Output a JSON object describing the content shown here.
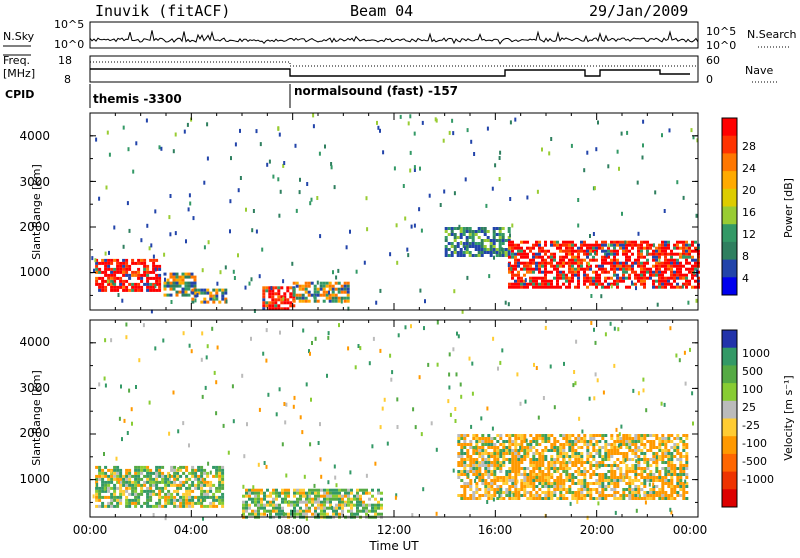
{
  "header": {
    "station": "Inuvik (fitACF)",
    "beam": "Beam 04",
    "date": "29/Jan/2009"
  },
  "panels": {
    "nsky": {
      "label": "N.Sky",
      "left_ticks": [
        "10^5",
        "10^0"
      ],
      "right_ticks": [
        "10^5",
        "10^0"
      ],
      "right_label": "N.Search"
    },
    "freq": {
      "label": "Freq.",
      "unit": "[MHz]",
      "left_ticks": [
        "18",
        "8"
      ],
      "right_ticks": [
        "60",
        "0"
      ],
      "right_label": "Nave"
    },
    "cpid": {
      "label": "CPID",
      "segments": [
        {
          "text": "themis -3300",
          "start_hour": 0,
          "end_hour": 8
        },
        {
          "text": "normalsound (fast) -157",
          "start_hour": 8,
          "end_hour": 24
        }
      ]
    }
  },
  "colorbars": {
    "power": {
      "title": "Power [dB]",
      "ticks": [
        "28",
        "24",
        "20",
        "16",
        "12",
        "8",
        "4"
      ],
      "colors": [
        "#ff0000",
        "#ff3300",
        "#ff7700",
        "#ffaa00",
        "#ddcc00",
        "#99cc33",
        "#339966",
        "#2f7f5f",
        "#2244aa",
        "#0000ee"
      ]
    },
    "velocity": {
      "title": "Velocity [m s⁻¹]",
      "ticks": [
        "1000",
        "500",
        "100",
        "25",
        "-25",
        "-100",
        "-500",
        "-1000"
      ],
      "colors": [
        "#2233aa",
        "#339966",
        "#55aa44",
        "#88cc33",
        "#bbbbbb",
        "#ffcc33",
        "#ff9900",
        "#ff6600",
        "#ee3300",
        "#dd0000"
      ]
    }
  },
  "axes": {
    "ylabel": "Slant Range [km]",
    "xlabel": "Time UT",
    "y_ticks": [
      "4000",
      "3000",
      "2000",
      "1000"
    ],
    "x_ticks": [
      "00:00",
      "04:00",
      "08:00",
      "12:00",
      "16:00",
      "20:00",
      "00:00"
    ]
  },
  "chart_data": [
    {
      "type": "heatmap",
      "title": "",
      "xlabel": "",
      "ylabel": "Slant Range [km]",
      "xlim_hours": [
        0,
        24
      ],
      "ylim": [
        180,
        4500
      ],
      "quantity": "Power [dB]",
      "regions": [
        {
          "t": [
            0.2,
            2.7
          ],
          "range": [
            600,
            1300
          ],
          "level": "strong"
        },
        {
          "t": [
            2.9,
            4.1
          ],
          "range": [
            500,
            1000
          ],
          "level": "medium"
        },
        {
          "t": [
            4.0,
            5.4
          ],
          "range": [
            350,
            650
          ],
          "level": "medium"
        },
        {
          "t": [
            6.8,
            8.0
          ],
          "range": [
            200,
            700
          ],
          "level": "strong"
        },
        {
          "t": [
            8.0,
            10.2
          ],
          "range": [
            400,
            800
          ],
          "level": "medium"
        },
        {
          "t": [
            14.0,
            16.5
          ],
          "range": [
            1400,
            2000
          ],
          "level": "weak"
        },
        {
          "t": [
            16.5,
            24
          ],
          "range": [
            700,
            1700
          ],
          "level": "strong"
        }
      ]
    },
    {
      "type": "heatmap",
      "title": "",
      "xlabel": "Time UT",
      "ylabel": "Slant Range [km]",
      "xlim_hours": [
        0,
        24
      ],
      "ylim": [
        180,
        4500
      ],
      "quantity": "Velocity [m s⁻¹]",
      "regions": [
        {
          "t": [
            0.2,
            5.2
          ],
          "range": [
            400,
            1300
          ],
          "level": "mixed"
        },
        {
          "t": [
            6.0,
            11.5
          ],
          "range": [
            200,
            800
          ],
          "level": "mixed"
        },
        {
          "t": [
            14.5,
            23.6
          ],
          "range": [
            600,
            2000
          ],
          "level": "negative"
        }
      ]
    }
  ]
}
